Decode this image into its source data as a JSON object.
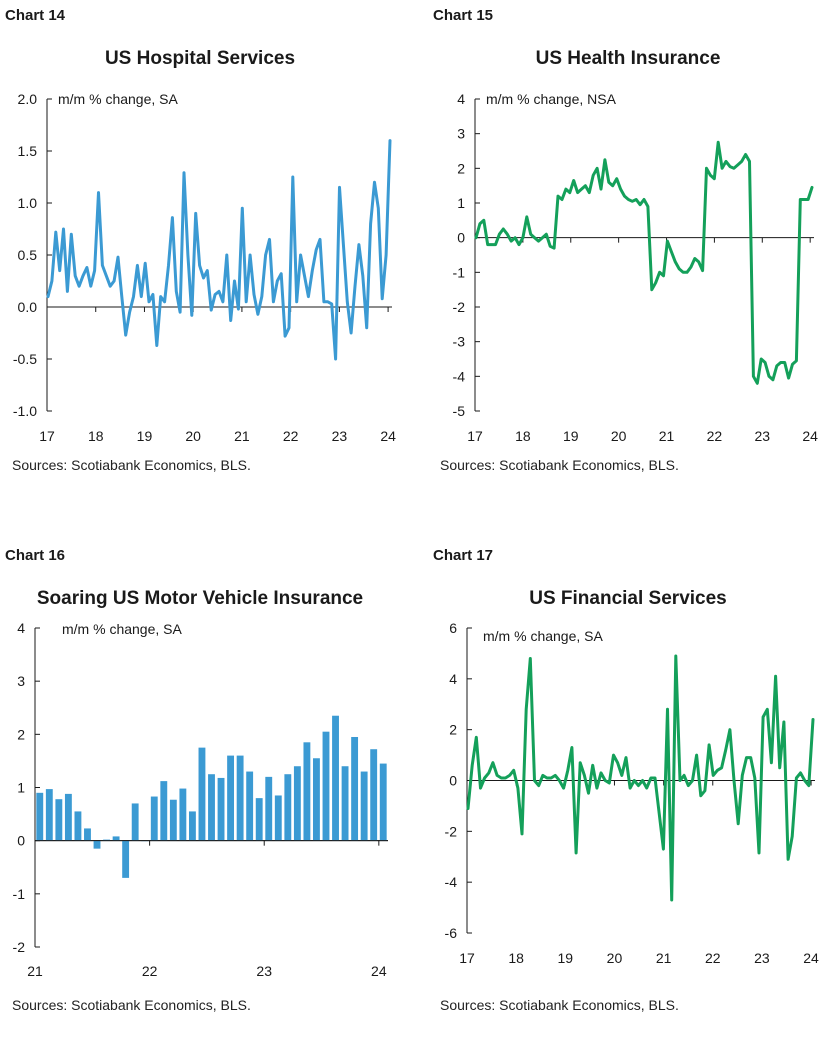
{
  "colors": {
    "blue": "#3b9ad3",
    "green": "#14a05a",
    "axis": "#1a1a1a"
  },
  "source_note": "Sources: Scotiabank Economics, BLS.",
  "chart_data": [
    {
      "label": "Chart 14",
      "title": "US Hospital Services",
      "type": "line",
      "unit_label": "m/m % change, SA",
      "color": "#3b9ad3",
      "ylim": [
        -1.0,
        2.0
      ],
      "yticks": [
        "2.0",
        "1.5",
        "1.0",
        "0.5",
        "0.0",
        "-0.5",
        "-1.0"
      ],
      "ytick_values": [
        2.0,
        1.5,
        1.0,
        0.5,
        0.0,
        -0.5,
        -1.0
      ],
      "xtick_labels": [
        "17",
        "18",
        "19",
        "20",
        "21",
        "22",
        "23",
        "24"
      ],
      "x_start_year": 2017,
      "x_end_year": 2024.08,
      "grid": false,
      "series": [
        {
          "values": [
            0.1,
            0.25,
            0.72,
            0.35,
            0.75,
            0.15,
            0.7,
            0.3,
            0.2,
            0.3,
            0.38,
            0.2,
            0.35,
            1.1,
            0.4,
            0.3,
            0.2,
            0.25,
            0.48,
            0.1,
            -0.27,
            -0.05,
            0.1,
            0.4,
            0.1,
            0.42,
            0.05,
            0.12,
            -0.37,
            0.1,
            0.05,
            0.4,
            0.86,
            0.15,
            -0.05,
            1.29,
            0.5,
            -0.08,
            0.9,
            0.4,
            0.28,
            0.35,
            -0.03,
            0.12,
            0.15,
            0.05,
            0.5,
            -0.13,
            0.25,
            -0.02,
            0.95,
            0.05,
            0.5,
            0.12,
            -0.07,
            0.1,
            0.5,
            0.65,
            0.05,
            0.25,
            0.32,
            -0.28,
            -0.2,
            1.25,
            0.05,
            0.5,
            0.3,
            0.1,
            0.35,
            0.55,
            0.65,
            0.05,
            0.05,
            0.03,
            -0.5,
            1.15,
            0.6,
            0.05,
            -0.25,
            0.2,
            0.6,
            0.3,
            -0.2,
            0.8,
            1.2,
            0.95,
            0.08,
            0.5,
            1.6
          ]
        }
      ]
    },
    {
      "label": "Chart 15",
      "title": "US Health Insurance",
      "type": "line",
      "unit_label": "m/m % change, NSA",
      "color": "#14a05a",
      "ylim": [
        -5,
        4
      ],
      "yticks": [
        "4",
        "3",
        "2",
        "1",
        "0",
        "-1",
        "-2",
        "-3",
        "-4",
        "-5"
      ],
      "ytick_values": [
        4,
        3,
        2,
        1,
        0,
        -1,
        -2,
        -3,
        -4,
        -5
      ],
      "xtick_labels": [
        "17",
        "18",
        "19",
        "20",
        "21",
        "22",
        "23",
        "24"
      ],
      "x_start_year": 2017,
      "x_end_year": 2024.08,
      "grid": false,
      "series": [
        {
          "values": [
            0.0,
            0.4,
            0.5,
            -0.2,
            -0.2,
            -0.2,
            0.1,
            0.25,
            0.1,
            -0.1,
            0.0,
            -0.2,
            0.0,
            0.6,
            0.1,
            0.0,
            -0.1,
            0.0,
            0.1,
            -0.25,
            -0.3,
            1.2,
            1.1,
            1.4,
            1.3,
            1.65,
            1.3,
            1.4,
            1.5,
            1.3,
            1.8,
            2.0,
            1.4,
            2.25,
            1.6,
            1.5,
            1.7,
            1.4,
            1.2,
            1.1,
            1.05,
            1.1,
            0.95,
            1.1,
            0.9,
            -1.5,
            -1.3,
            -1.0,
            -1.1,
            -0.1,
            -0.4,
            -0.7,
            -0.9,
            -1.0,
            -1.0,
            -0.85,
            -0.6,
            -0.7,
            -0.95,
            2.0,
            1.8,
            1.7,
            2.75,
            2.0,
            2.2,
            2.05,
            2.0,
            2.1,
            2.2,
            2.4,
            2.2,
            -4.0,
            -4.2,
            -3.5,
            -3.6,
            -4.0,
            -4.1,
            -3.7,
            -3.6,
            -3.6,
            -4.05,
            -3.65,
            -3.55,
            1.1,
            1.1,
            1.1,
            1.45
          ]
        }
      ]
    },
    {
      "label": "Chart 16",
      "title": "Soaring US Motor Vehicle Insurance",
      "type": "bar",
      "unit_label": "m/m % change, SA",
      "color": "#3b9ad3",
      "ylim": [
        -2,
        4
      ],
      "yticks": [
        "4",
        "3",
        "2",
        "1",
        "0",
        "-1",
        "-2"
      ],
      "ytick_values": [
        4,
        3,
        2,
        1,
        0,
        -1,
        -2
      ],
      "xtick_labels": [
        "21",
        "22",
        "23",
        "24"
      ],
      "x_start_year": 2021,
      "x_end_year": 2024.08,
      "grid": false,
      "series": [
        {
          "values": [
            0.9,
            0.97,
            0.78,
            0.88,
            0.55,
            0.23,
            -0.15,
            0.02,
            0.08,
            -0.7,
            0.7,
            0.0,
            0.83,
            1.12,
            0.77,
            0.98,
            0.55,
            1.75,
            1.25,
            1.18,
            1.6,
            1.6,
            1.3,
            0.8,
            1.2,
            0.85,
            1.25,
            1.4,
            1.85,
            1.55,
            2.05,
            2.35,
            1.4,
            1.95,
            1.3,
            1.72,
            1.45
          ]
        }
      ]
    },
    {
      "label": "Chart 17",
      "title": "US Financial Services",
      "type": "line",
      "unit_label": "m/m % change, SA",
      "color": "#14a05a",
      "ylim": [
        -6,
        6
      ],
      "yticks": [
        "6",
        "4",
        "2",
        "0",
        "-2",
        "-4",
        "-6"
      ],
      "ytick_values": [
        6,
        4,
        2,
        0,
        -2,
        -4,
        -6
      ],
      "xtick_labels": [
        "17",
        "18",
        "19",
        "20",
        "21",
        "22",
        "23",
        "24"
      ],
      "x_start_year": 2017,
      "x_end_year": 2024.08,
      "grid": false,
      "series": [
        {
          "values": [
            -1.1,
            0.6,
            1.7,
            -0.3,
            0.1,
            0.3,
            0.7,
            0.2,
            0.1,
            0.1,
            0.2,
            0.4,
            -0.3,
            -2.1,
            2.8,
            4.8,
            0.0,
            -0.2,
            0.2,
            0.1,
            0.1,
            0.2,
            0.0,
            -0.3,
            0.4,
            1.3,
            -2.85,
            0.7,
            0.2,
            -0.5,
            0.6,
            -0.3,
            0.3,
            0.0,
            -0.1,
            1.0,
            0.7,
            0.2,
            0.9,
            -0.3,
            0.0,
            -0.2,
            0.0,
            -0.3,
            0.1,
            0.1,
            -1.3,
            -2.7,
            2.8,
            -4.7,
            4.9,
            0.0,
            0.2,
            -0.2,
            0.0,
            1.0,
            -0.6,
            -0.4,
            1.4,
            0.2,
            0.4,
            0.5,
            1.2,
            2.0,
            0.0,
            -1.7,
            0.2,
            0.9,
            0.9,
            0.1,
            -2.85,
            2.5,
            2.8,
            0.7,
            4.1,
            0.5,
            2.3,
            -3.1,
            -2.2,
            0.1,
            0.3,
            0.0,
            -0.2,
            2.4
          ]
        }
      ]
    }
  ]
}
